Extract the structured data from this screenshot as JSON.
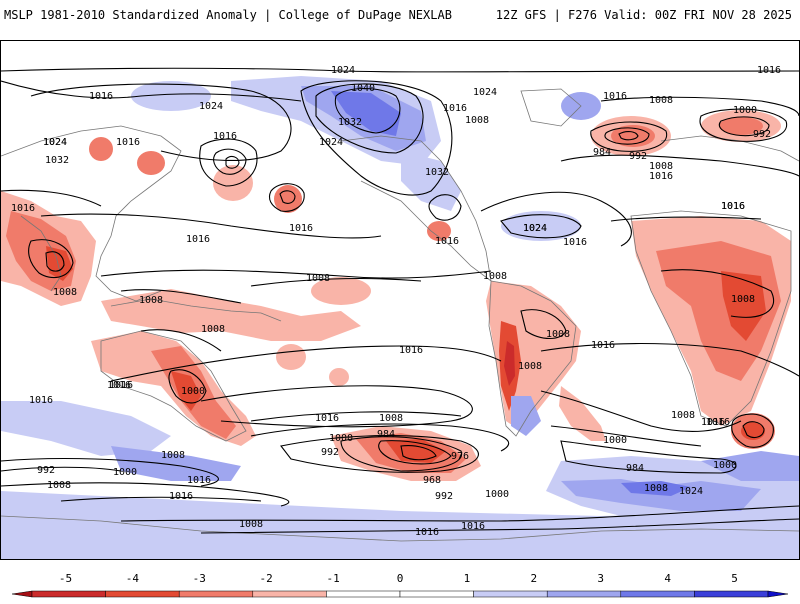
{
  "header": {
    "title": "MSLP 1981-2010 Standardized Anomaly | College of DuPage NEXLAB",
    "run_info": "12Z GFS | F276 Valid: 00Z FRI NOV 28 2025"
  },
  "colorbar": {
    "ticks": [
      "-5",
      "-4",
      "-3",
      "-2",
      "-1",
      "0",
      "1",
      "2",
      "3",
      "4",
      "5"
    ],
    "colors": [
      "#a50f15",
      "#cb2b2b",
      "#e34a33",
      "#f07b6a",
      "#f9b4a8",
      "#ffffff",
      "#ffffff",
      "#c8ccf5",
      "#9fa6ef",
      "#6f78e8",
      "#3b3fd9",
      "#1010c8"
    ]
  },
  "map": {
    "isobar_labels": [
      {
        "text": "1024",
        "id": "1024-arctic-north"
      },
      {
        "text": "1016",
        "id": "1016-ne-atlantic-top"
      },
      {
        "text": "1040",
        "id": "1040-alaska-high"
      },
      {
        "text": "1016",
        "id": "1016-nw-pacific"
      },
      {
        "text": "1024",
        "id": "1024-siberia"
      },
      {
        "text": "1024",
        "id": "1024-siberia-2"
      },
      {
        "text": "1016",
        "id": "1016-asia-1"
      },
      {
        "text": "1016",
        "id": "1016-asia-2"
      },
      {
        "text": "1024",
        "id": "1024-canada"
      },
      {
        "text": "1016",
        "id": "1016-labrador"
      },
      {
        "text": "1032",
        "id": "1032-yukon"
      },
      {
        "text": "1008",
        "id": "1008-hudson"
      },
      {
        "text": "1024",
        "id": "1024-bc"
      },
      {
        "text": "1016",
        "id": "1016-greenland"
      },
      {
        "text": "1008",
        "id": "1008-atlantic-n"
      },
      {
        "text": "1000",
        "id": "1000-norway"
      },
      {
        "text": "992",
        "id": "992-scandinavia"
      },
      {
        "text": "984",
        "id": "984-iceland"
      },
      {
        "text": "992",
        "id": "992-iceland-2"
      },
      {
        "text": "1008",
        "id": "1008-europe"
      },
      {
        "text": "1016",
        "id": "1016-europe"
      },
      {
        "text": "1032",
        "id": "1032-asia-w"
      },
      {
        "text": "1024",
        "id": "1024-asia-w2"
      },
      {
        "text": "1016",
        "id": "1016-asia-w3"
      },
      {
        "text": "1016",
        "id": "1016-west-pacific"
      },
      {
        "text": "1016",
        "id": "1016-pacific-mid"
      },
      {
        "text": "1032",
        "id": "1032-us"
      },
      {
        "text": "1016",
        "id": "1016-mexico"
      },
      {
        "text": "1024",
        "id": "1024-atlantic-sub"
      },
      {
        "text": "1016",
        "id": "1016-atlantic-sub"
      },
      {
        "text": "1016",
        "id": "1016-africa-n"
      },
      {
        "text": "1016",
        "id": "1016-india"
      },
      {
        "text": "1008",
        "id": "1008-india"
      },
      {
        "text": "1008",
        "id": "1008-pacific-eq"
      },
      {
        "text": "1008",
        "id": "1008-indonesia"
      },
      {
        "text": "1008",
        "id": "1008-png"
      },
      {
        "text": "1008",
        "id": "1008-s-america"
      },
      {
        "text": "1008",
        "id": "1008-brazil"
      },
      {
        "text": "1008",
        "id": "1008-argentina"
      },
      {
        "text": "1008",
        "id": "1008-africa-s"
      },
      {
        "text": "1016",
        "id": "1016-s-pacific"
      },
      {
        "text": "1016",
        "id": "1016-s-atlantic"
      },
      {
        "text": "1016",
        "id": "1016-indian-ocean"
      },
      {
        "text": "1016",
        "id": "1016-australia"
      },
      {
        "text": "1000",
        "id": "1000-australia"
      },
      {
        "text": "1016",
        "id": "1016-s-pacific-2"
      },
      {
        "text": "1008",
        "id": "1008-s-pacific-2"
      },
      {
        "text": "1000",
        "id": "1000-s-pacific"
      },
      {
        "text": "992",
        "id": "992-s-pacific"
      },
      {
        "text": "984",
        "id": "984-s-pacific"
      },
      {
        "text": "976",
        "id": "976-s-pacific"
      },
      {
        "text": "968",
        "id": "968-s-pacific"
      },
      {
        "text": "992",
        "id": "992-s-pacific-2"
      },
      {
        "text": "1000",
        "id": "1000-s-pacific-2"
      },
      {
        "text": "1008",
        "id": "1008-s-atlantic-low"
      },
      {
        "text": "1016",
        "id": "1016-s-atlantic-low"
      },
      {
        "text": "1000",
        "id": "1000-s-atlantic-low"
      },
      {
        "text": "984",
        "id": "984-s-atlantic"
      },
      {
        "text": "1000",
        "id": "1000-s-indian"
      },
      {
        "text": "1008",
        "id": "1008-antarctic-1"
      },
      {
        "text": "1024",
        "id": "1024-antarctic"
      },
      {
        "text": "1016",
        "id": "1016-antarctic-1"
      },
      {
        "text": "1016",
        "id": "1016-antarctic-2"
      },
      {
        "text": "992",
        "id": "992-southern-ocean-w"
      },
      {
        "text": "1000",
        "id": "1000-southern-ocean-w"
      },
      {
        "text": "1008",
        "id": "1008-southern-ocean-w"
      },
      {
        "text": "1016",
        "id": "1016-southern-ocean-w"
      },
      {
        "text": "1008",
        "id": "1008-southern-ocean-w2"
      },
      {
        "text": "1008",
        "id": "1008-antarctic-2"
      },
      {
        "text": "1016",
        "id": "1016-southern-ocean-w2"
      },
      {
        "text": "1016",
        "id": "1016-africa-w"
      },
      {
        "text": "1024",
        "id": "1024-south-america-e"
      },
      {
        "text": "1016",
        "id": "1016-s-indian-1"
      }
    ]
  }
}
